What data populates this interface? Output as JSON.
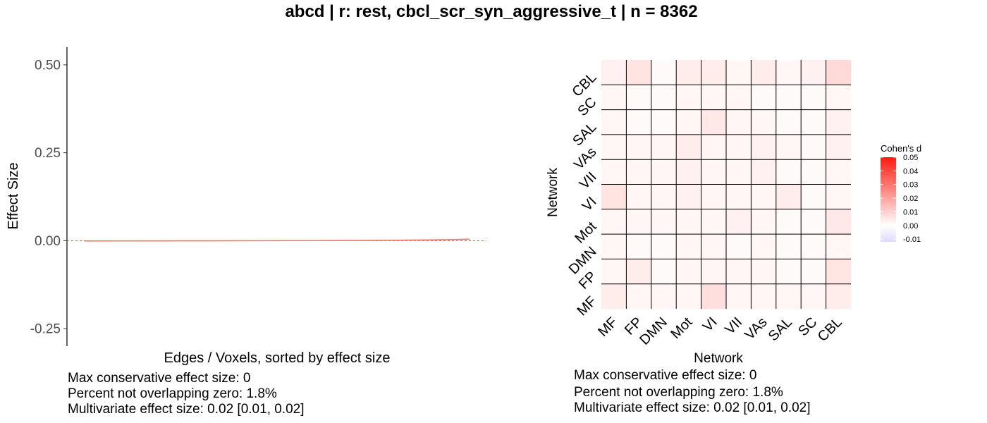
{
  "title": "abcd | r: rest, cbcl_scr_syn_aggressive_t | n = 8362",
  "chart_data": [
    {
      "type": "line",
      "xlabel": "Edges / Voxels, sorted by effect size",
      "ylabel": "Effect Size",
      "ylim": [
        -0.3,
        0.55
      ],
      "yticks": [
        -0.25,
        0.0,
        0.25,
        0.5
      ],
      "ytick_labels": [
        "-0.25",
        "0.00",
        "0.25",
        "0.50"
      ],
      "series": [
        {
          "x": [
            0.0,
            0.1,
            0.2,
            0.3,
            0.4,
            0.5,
            0.6,
            0.7,
            0.8,
            0.9,
            0.95,
            1.0
          ],
          "y": [
            -0.001,
            -0.0008,
            -0.0006,
            -0.0004,
            -0.0002,
            0.0,
            0.0002,
            0.0005,
            0.001,
            0.002,
            0.003,
            0.004
          ],
          "color": "#f4776a"
        }
      ],
      "zero_line_color": "#e8504a",
      "grid": false
    },
    {
      "type": "heatmap",
      "xlabel": "Network",
      "ylabel": "Network",
      "x_categories": [
        "MF",
        "FP",
        "DMN",
        "Mot",
        "VI",
        "VII",
        "VAs",
        "SAL",
        "SC",
        "CBL"
      ],
      "y_categories": [
        "MF",
        "FP",
        "DMN",
        "Mot",
        "VI",
        "VII",
        "VAs",
        "SAL",
        "SC",
        "CBL"
      ],
      "values": [
        [
          0.004,
          0.002,
          0.002,
          0.002,
          0.007,
          0.002,
          0.002,
          0.002,
          0.002,
          0.004
        ],
        [
          0.002,
          0.004,
          0.001,
          0.002,
          0.002,
          0.002,
          0.002,
          0.001,
          0.001,
          0.006
        ],
        [
          0.002,
          0.001,
          0.001,
          0.002,
          0.002,
          0.001,
          0.002,
          0.001,
          0.001,
          0.002
        ],
        [
          0.002,
          0.002,
          0.002,
          0.002,
          0.002,
          0.003,
          0.002,
          0.001,
          0.001,
          0.005
        ],
        [
          0.006,
          0.002,
          0.002,
          0.003,
          0.002,
          0.002,
          0.002,
          0.004,
          0.001,
          0.002
        ],
        [
          0.002,
          0.002,
          0.002,
          0.003,
          0.002,
          0.002,
          0.003,
          0.001,
          0.001,
          0.002
        ],
        [
          0.002,
          0.002,
          0.002,
          0.004,
          0.002,
          0.002,
          0.003,
          0.002,
          0.001,
          0.003
        ],
        [
          0.002,
          0.001,
          0.001,
          0.002,
          0.005,
          0.002,
          0.002,
          0.001,
          0.001,
          0.003
        ],
        [
          0.002,
          0.001,
          0.001,
          0.002,
          0.002,
          0.002,
          0.001,
          0.001,
          0.001,
          0.002
        ],
        [
          0.003,
          0.006,
          0.001,
          0.004,
          0.004,
          0.002,
          0.004,
          0.002,
          0.003,
          0.008
        ]
      ],
      "legend": {
        "title": "Cohen's d",
        "ticks": [
          0.05,
          0.04,
          0.03,
          0.02,
          0.01,
          0.0,
          -0.01
        ],
        "tick_labels": [
          "0.05",
          "0.04",
          "0.03",
          "0.02",
          "0.01",
          "0.00",
          "-0.01"
        ],
        "range": [
          -0.012,
          0.05
        ],
        "low_color": "#e2d9ff",
        "mid_color": "#ffffff",
        "high_color": "#ff1a0f",
        "placement": "right"
      }
    }
  ],
  "left_stats": [
    "Max conservative effect size: 0",
    "Percent not overlapping zero: 1.8%",
    "Multivariate effect size: 0.02 [0.01, 0.02]"
  ],
  "right_stats": [
    "Max conservative effect size: 0",
    "Percent not overlapping zero: 1.8%",
    "Multivariate effect size: 0.02 [0.01, 0.02]"
  ]
}
